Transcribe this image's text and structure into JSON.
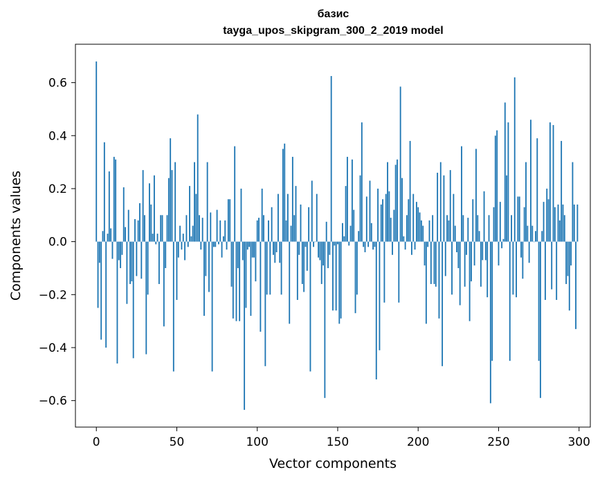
{
  "chart_data": {
    "type": "bar",
    "title_lines": [
      "базис",
      "tayga_upos_skipgram_300_2_2019 model"
    ],
    "xlabel": "Vector components",
    "ylabel": "Components values",
    "xlim": [
      -13,
      307
    ],
    "ylim": [
      -0.7,
      0.745
    ],
    "xticks": [
      0,
      50,
      100,
      150,
      200,
      250,
      300
    ],
    "yticks": [
      -0.6,
      -0.4,
      -0.2,
      0.0,
      0.2,
      0.4,
      0.6
    ],
    "ytick_labels": [
      "−0.6",
      "−0.4",
      "−0.2",
      "0.0",
      "0.2",
      "0.4",
      "0.6"
    ],
    "bar_color": "#1f77b4",
    "x": "0..299",
    "values": [
      0.68,
      -0.25,
      -0.08,
      -0.37,
      0.04,
      0.375,
      -0.4,
      0.03,
      0.265,
      0.05,
      -0.065,
      0.32,
      0.31,
      -0.46,
      -0.07,
      -0.1,
      -0.05,
      0.205,
      0.055,
      -0.235,
      0.12,
      -0.16,
      -0.15,
      -0.44,
      0.085,
      -0.13,
      0.08,
      0.145,
      -0.14,
      0.27,
      0.1,
      -0.425,
      -0.2,
      0.22,
      0.14,
      0.03,
      0.25,
      -0.01,
      0.03,
      -0.16,
      0.1,
      0.1,
      -0.32,
      -0.1,
      0.1,
      0.24,
      0.39,
      0.27,
      -0.49,
      0.3,
      -0.22,
      -0.06,
      0.06,
      -0.03,
      0.03,
      -0.07,
      0.1,
      -0.02,
      0.21,
      0.02,
      0.06,
      0.3,
      0.18,
      0.48,
      0.1,
      -0.03,
      0.09,
      -0.28,
      -0.13,
      0.3,
      -0.19,
      0.11,
      -0.49,
      -0.02,
      -0.02,
      0.12,
      -0.01,
      0.08,
      -0.06,
      0.02,
      0.08,
      -0.03,
      0.16,
      0.16,
      -0.17,
      -0.29,
      0.36,
      -0.3,
      -0.1,
      -0.3,
      0.2,
      -0.07,
      -0.635,
      -0.25,
      -0.03,
      -0.02,
      -0.28,
      -0.06,
      -0.06,
      -0.15,
      0.08,
      0.09,
      -0.34,
      0.2,
      0.1,
      -0.47,
      -0.2,
      0.08,
      -0.2,
      0.13,
      -0.05,
      -0.08,
      -0.04,
      0.18,
      -0.08,
      -0.2,
      0.35,
      0.37,
      0.08,
      0.18,
      -0.31,
      0.06,
      0.32,
      0.1,
      0.21,
      -0.22,
      -0.05,
      0.14,
      -0.16,
      -0.19,
      -0.02,
      -0.11,
      0.13,
      -0.49,
      0.23,
      -0.02,
      0.0,
      0.18,
      -0.06,
      -0.07,
      -0.16,
      -0.09,
      -0.59,
      0.075,
      -0.1,
      -0.05,
      0.625,
      -0.26,
      -0.015,
      -0.26,
      -0.01,
      -0.31,
      -0.29,
      0.07,
      0.02,
      0.21,
      0.32,
      -0.015,
      0.06,
      0.31,
      0.12,
      -0.27,
      -0.2,
      0.04,
      0.25,
      0.45,
      -0.02,
      -0.04,
      0.17,
      -0.02,
      0.23,
      0.07,
      -0.03,
      -0.02,
      -0.52,
      0.2,
      -0.41,
      0.14,
      0.16,
      -0.23,
      0.18,
      0.3,
      0.19,
      0.09,
      -0.05,
      0.12,
      0.29,
      0.31,
      -0.23,
      0.585,
      0.24,
      0.02,
      -0.03,
      0.1,
      0.16,
      0.38,
      -0.05,
      0.18,
      -0.03,
      0.15,
      0.13,
      0.11,
      0.08,
      0.06,
      -0.09,
      -0.31,
      -0.02,
      0.08,
      -0.16,
      0.1,
      -0.16,
      -0.17,
      0.26,
      -0.29,
      0.3,
      -0.47,
      0.25,
      -0.13,
      0.1,
      0.08,
      0.27,
      -0.2,
      0.18,
      0.06,
      -0.04,
      -0.1,
      -0.24,
      0.36,
      0.1,
      -0.17,
      -0.05,
      0.09,
      -0.3,
      -0.15,
      0.16,
      -0.09,
      0.35,
      0.1,
      0.04,
      -0.17,
      -0.07,
      0.19,
      -0.07,
      -0.21,
      0.1,
      -0.61,
      -0.45,
      0.13,
      0.4,
      0.42,
      -0.09,
      0.15,
      -0.025,
      0.01,
      0.525,
      0.25,
      0.45,
      -0.45,
      0.1,
      -0.2,
      0.62,
      -0.21,
      0.17,
      0.17,
      -0.06,
      -0.14,
      0.13,
      0.3,
      0.06,
      -0.08,
      0.46,
      0.06,
      0.0,
      0.04,
      0.39,
      -0.45,
      -0.59,
      0.04,
      0.15,
      -0.22,
      0.2,
      0.16,
      0.45,
      -0.18,
      0.44,
      0.13,
      -0.22,
      0.14,
      0.08,
      0.38,
      0.14,
      0.1,
      -0.16,
      -0.13,
      -0.26,
      -0.09,
      0.3,
      0.14,
      -0.33,
      0.14
    ]
  }
}
